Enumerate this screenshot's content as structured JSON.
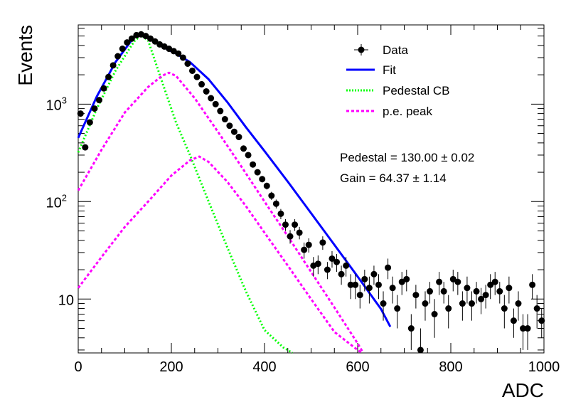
{
  "chart_data": {
    "type": "scatter",
    "xlabel": "ADC",
    "ylabel": "Events",
    "xlim": [
      0,
      1000
    ],
    "ylim": [
      2.8,
      6500
    ],
    "yscale": "log",
    "grid": false,
    "legend_placement": "top-right",
    "colors": {
      "data": "#000000",
      "fit": "#0000ff",
      "pedestal": "#00ff00",
      "pe": "#ff00ff"
    },
    "x_ticks": [
      {
        "value": 0,
        "label": "0"
      },
      {
        "value": 200,
        "label": "200"
      },
      {
        "value": 400,
        "label": "400"
      },
      {
        "value": 600,
        "label": "600"
      },
      {
        "value": 800,
        "label": "800"
      },
      {
        "value": 1000,
        "label": "1000"
      }
    ],
    "y_ticks": [
      {
        "value": 10,
        "base": "10",
        "exp": ""
      },
      {
        "value": 100,
        "base": "10",
        "exp": "2"
      },
      {
        "value": 1000,
        "base": "10",
        "exp": "3"
      }
    ],
    "legend": [
      {
        "label": "Data",
        "style": "marker"
      },
      {
        "label": "Fit",
        "style": "solid"
      },
      {
        "label": "Pedestal CB",
        "style": "dotted"
      },
      {
        "label": "p.e. peak",
        "style": "dashed"
      }
    ],
    "annotations": [
      "Pedestal = 130.00 ± 0.02",
      "Gain = 64.37 ± 1.14"
    ],
    "series": [
      {
        "name": "Data",
        "type": "scatter",
        "x": [
          5,
          15,
          25,
          35,
          45,
          55,
          65,
          75,
          85,
          95,
          105,
          115,
          125,
          135,
          145,
          155,
          165,
          175,
          185,
          195,
          205,
          215,
          225,
          235,
          245,
          255,
          265,
          275,
          285,
          295,
          305,
          315,
          325,
          335,
          345,
          355,
          365,
          375,
          385,
          395,
          405,
          415,
          425,
          435,
          445,
          455,
          465,
          475,
          485,
          495,
          505,
          515,
          525,
          535,
          545,
          555,
          565,
          575,
          585,
          595,
          605,
          615,
          625,
          635,
          645,
          655,
          665,
          675,
          685,
          695,
          705,
          715,
          725,
          735,
          745,
          755,
          765,
          775,
          785,
          795,
          805,
          815,
          825,
          835,
          845,
          855,
          865,
          875,
          885,
          895,
          905,
          915,
          925,
          935,
          945,
          955,
          965,
          975,
          985,
          995
        ],
        "y": [
          800,
          360,
          650,
          900,
          1100,
          1450,
          1900,
          2500,
          3100,
          3700,
          4300,
          4700,
          5100,
          5200,
          5000,
          4700,
          4400,
          4100,
          3900,
          3700,
          3500,
          3300,
          3000,
          2600,
          2200,
          1900,
          1600,
          1350,
          1150,
          1000,
          850,
          700,
          600,
          520,
          460,
          350,
          300,
          240,
          200,
          170,
          145,
          115,
          95,
          75,
          58,
          44,
          58,
          48,
          32,
          36,
          22,
          23,
          38,
          20,
          26,
          24,
          18,
          22,
          14,
          14,
          11,
          16,
          13,
          18,
          14,
          9,
          21,
          13,
          8,
          15,
          16,
          5,
          11,
          3,
          9,
          12,
          7,
          15,
          12,
          8,
          16,
          15,
          9,
          13,
          9,
          12,
          10,
          11,
          14,
          15,
          12,
          8,
          13,
          6,
          9,
          5,
          5,
          14,
          8,
          6
        ],
        "yerr": [
          28,
          19,
          25,
          30,
          33,
          38,
          44,
          50,
          56,
          61,
          66,
          69,
          71,
          72,
          71,
          69,
          66,
          64,
          62,
          61,
          59,
          57,
          55,
          51,
          47,
          44,
          40,
          37,
          34,
          32,
          29,
          26,
          24,
          23,
          21,
          19,
          17,
          15,
          14,
          13,
          12,
          11,
          10,
          9,
          8,
          7,
          8,
          7,
          6,
          6,
          5,
          5,
          6,
          4,
          5,
          5,
          4,
          5,
          4,
          4,
          3,
          4,
          4,
          4,
          4,
          3,
          5,
          4,
          3,
          4,
          4,
          2,
          3,
          2,
          3,
          3,
          3,
          4,
          3,
          3,
          4,
          4,
          3,
          4,
          3,
          3,
          3,
          3,
          4,
          4,
          3,
          3,
          4,
          2,
          3,
          2,
          2,
          4,
          3,
          2
        ]
      },
      {
        "name": "Fit",
        "type": "line",
        "x": [
          0,
          40,
          80,
          120,
          135,
          150,
          180,
          210,
          240,
          280,
          320,
          360,
          400,
          450,
          500,
          550,
          600,
          650,
          670
        ],
        "y": [
          450,
          1200,
          2700,
          4900,
          5300,
          4850,
          3900,
          3300,
          2700,
          1800,
          1050,
          580,
          330,
          160,
          76,
          36,
          17,
          7.9,
          5.2
        ]
      },
      {
        "name": "Pedestal CB",
        "type": "line",
        "x": [
          0,
          40,
          80,
          120,
          135,
          150,
          180,
          210,
          240,
          280,
          320,
          360,
          400,
          440,
          460
        ],
        "y": [
          320,
          900,
          2200,
          4400,
          5100,
          4500,
          1700,
          650,
          300,
          100,
          34,
          12,
          4.8,
          3.2,
          2.8
        ]
      },
      {
        "name": "p.e. peak",
        "type": "line",
        "x": [
          0,
          50,
          100,
          150,
          180,
          195,
          210,
          250,
          300,
          350,
          400,
          450,
          500,
          550,
          600,
          610
        ],
        "y": [
          130,
          340,
          820,
          1500,
          1950,
          2100,
          1950,
          1150,
          520,
          230,
          100,
          44,
          19,
          8.2,
          3.5,
          2.9
        ]
      },
      {
        "name": "p.e. peak",
        "type": "line",
        "x": [
          0,
          50,
          100,
          150,
          200,
          240,
          260,
          280,
          320,
          360,
          400,
          450,
          500,
          550,
          600,
          610
        ],
        "y": [
          13,
          27,
          55,
          100,
          185,
          265,
          290,
          255,
          160,
          90,
          48,
          22,
          10,
          4.6,
          3.0,
          2.8
        ]
      }
    ]
  }
}
